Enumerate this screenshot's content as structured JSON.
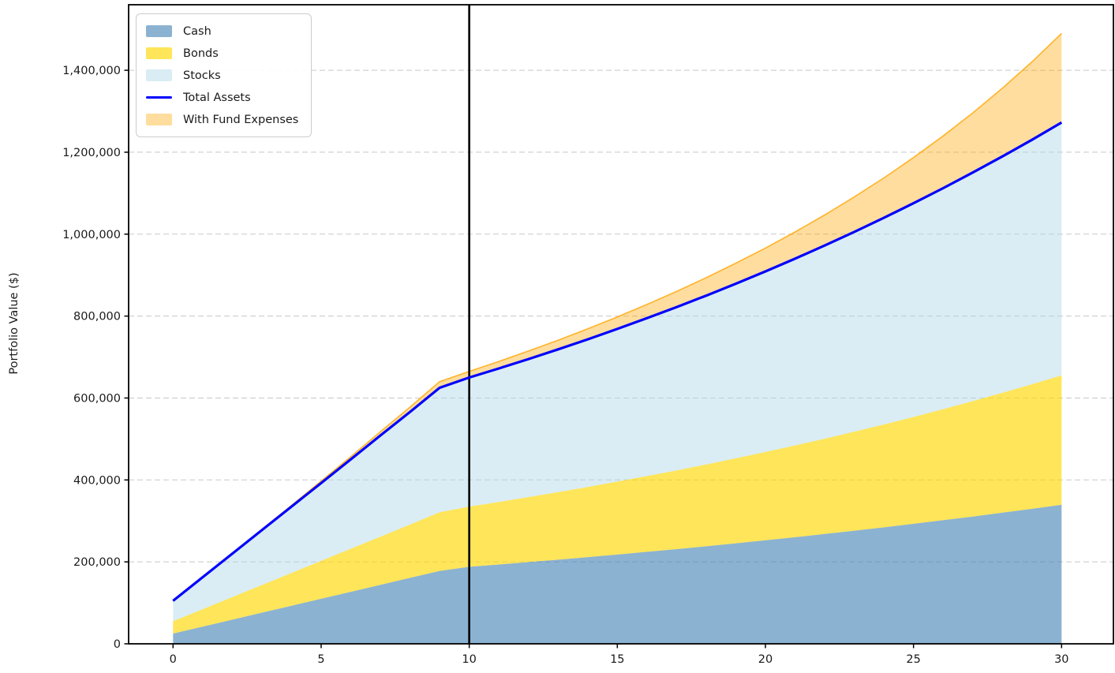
{
  "ylabel": "Portfolio Value ($)",
  "legend": {
    "items": [
      {
        "label": "Cash",
        "type": "patch",
        "series": "cash"
      },
      {
        "label": "Bonds",
        "type": "patch",
        "series": "bonds"
      },
      {
        "label": "Stocks",
        "type": "patch",
        "series": "stocks"
      },
      {
        "label": "Total Assets",
        "type": "line",
        "series": "total"
      },
      {
        "label": "With Fund Expenses",
        "type": "patch",
        "series": "with_fund_expenses"
      }
    ]
  },
  "chart_data": {
    "type": "area",
    "title": "",
    "xlabel": "",
    "ylabel": "Portfolio Value ($)",
    "x": [
      0,
      1,
      2,
      3,
      4,
      5,
      6,
      7,
      8,
      9,
      10,
      11,
      12,
      13,
      14,
      15,
      16,
      17,
      18,
      19,
      20,
      21,
      22,
      23,
      24,
      25,
      26,
      27,
      28,
      29,
      30
    ],
    "series": [
      {
        "name": "Cash",
        "stacked": true,
        "values": [
          25000,
          42000,
          59000,
          76000,
          93000,
          110000,
          127000,
          144000,
          161000,
          178000,
          188000,
          193600,
          199500,
          205400,
          211600,
          217900,
          224500,
          231200,
          238100,
          245300,
          252600,
          260200,
          268000,
          276100,
          284300,
          292900,
          301700,
          310700,
          320000,
          329600,
          339500
        ]
      },
      {
        "name": "Bonds",
        "stacked": true,
        "values": [
          30000,
          42500,
          55000,
          67500,
          80000,
          92500,
          105000,
          117500,
          130000,
          143000,
          147000,
          152700,
          158700,
          164900,
          171300,
          178000,
          184900,
          192100,
          199600,
          207400,
          215500,
          223900,
          232600,
          241700,
          251100,
          260900,
          271100,
          281700,
          292600,
          304000,
          315900
        ]
      },
      {
        "name": "Stocks",
        "stacked": true,
        "values": [
          50000,
          78000,
          106000,
          134000,
          162000,
          190000,
          218000,
          247000,
          275000,
          304000,
          315000,
          325800,
          336900,
          348400,
          360400,
          372700,
          385400,
          398600,
          412200,
          426300,
          440900,
          456000,
          471600,
          487700,
          504400,
          521600,
          539500,
          557900,
          577000,
          596700,
          617100
        ]
      },
      {
        "name": "Total Assets",
        "stacked": false,
        "role": "line",
        "values": [
          105000,
          162500,
          220000,
          277500,
          335000,
          392500,
          450000,
          508500,
          566000,
          625000,
          650000,
          672100,
          695100,
          718700,
          743300,
          768600,
          794800,
          821900,
          849900,
          879000,
          909000,
          940100,
          972200,
          1005500,
          1039800,
          1075400,
          1112300,
          1150300,
          1189600,
          1230300,
          1272500
        ]
      },
      {
        "name": "With Fund Expenses",
        "stacked": false,
        "role": "band_above_total",
        "values": [
          105000,
          162700,
          220700,
          279200,
          338000,
          397100,
          456700,
          517600,
          577800,
          640000,
          665000,
          689200,
          714700,
          741100,
          768900,
          797900,
          828300,
          860200,
          893600,
          929000,
          966100,
          1005400,
          1046800,
          1090800,
          1137300,
          1186900,
          1239700,
          1295900,
          1356100,
          1420600,
          1490000
        ]
      }
    ],
    "vline_x": 10,
    "xlim": [
      -1.5,
      31.75
    ],
    "ylim": [
      0,
      1560000
    ],
    "xtick_values": [
      0,
      5,
      10,
      15,
      20,
      25,
      30
    ],
    "xtick_labels": [
      "0",
      "5",
      "10",
      "15",
      "20",
      "25",
      "30"
    ],
    "ytick_values": [
      0,
      200000,
      400000,
      600000,
      800000,
      1000000,
      1200000,
      1400000
    ],
    "ytick_labels": [
      "0",
      "200,000",
      "400,000",
      "600,000",
      "800,000",
      "1,000,000",
      "1,200,000",
      "1,400,000"
    ],
    "grid": "horizontal-dashed",
    "legend_position": "upper-left",
    "colors": {
      "cash_fill": "rgba(70,130,180,0.62)",
      "bonds_fill": "rgba(255,215,0,0.65)",
      "stocks_fill": "rgba(173,216,230,0.45)",
      "expenses_fill": "rgba(255,165,0,0.38)",
      "expenses_edge": "rgba(255,165,0,0.8)",
      "total_line": "#0000ff",
      "marker_line": "#000000",
      "grid_line": "#c8c8c8",
      "axis": "#000000",
      "text": "#1a1a1a"
    }
  }
}
